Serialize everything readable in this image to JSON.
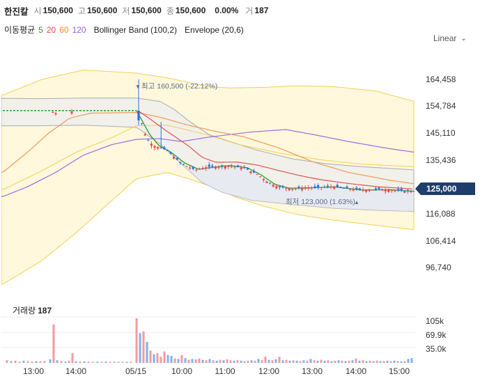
{
  "header": {
    "name": "한진칼",
    "open_label": "시",
    "open": "150,600",
    "high_label": "고",
    "high": "150,600",
    "low_label": "저",
    "low": "150,600",
    "close_label": "종",
    "close": "150,600",
    "change": "0.00%",
    "volume_label": "거",
    "volume": "187"
  },
  "indicators": {
    "ma_label": "이동평균",
    "ma": [
      {
        "period": "5",
        "color": "#22a022"
      },
      {
        "period": "20",
        "color": "#e04848"
      },
      {
        "period": "60",
        "color": "#f08a30"
      },
      {
        "period": "120",
        "color": "#9060d8"
      }
    ],
    "bollinger": "Bollinger Band (100,2)",
    "envelope": "Envelope (20,6)"
  },
  "scale_select": {
    "value": "Linear"
  },
  "chart_data": {
    "type": "candlestick",
    "y_ticks": [
      "164,458",
      "154,784",
      "145,110",
      "135,436",
      "125,000",
      "116,088",
      "106,414",
      "96,740"
    ],
    "ylim": [
      92000,
      172000
    ],
    "x_ticks": [
      "13:00",
      "14:00",
      "05/15",
      "10:00",
      "11:00",
      "12:00",
      "13:00",
      "14:00",
      "15:00"
    ],
    "current_price": "125,000",
    "high_annotation": "최고 160,500 (-22.12%)",
    "low_annotation": "최저 123,000 (1.63%)",
    "colors": {
      "up": "#e8464b",
      "down": "#2f6fde",
      "current_tag": "#1f3d6b",
      "envelope": "#fff8dc",
      "bollinger": "#f0efec"
    },
    "volume": {
      "title": "거래량",
      "value": "187",
      "y_ticks": [
        "105k",
        "69.9k",
        "35.0k"
      ],
      "ylim": [
        0,
        140000
      ]
    }
  }
}
